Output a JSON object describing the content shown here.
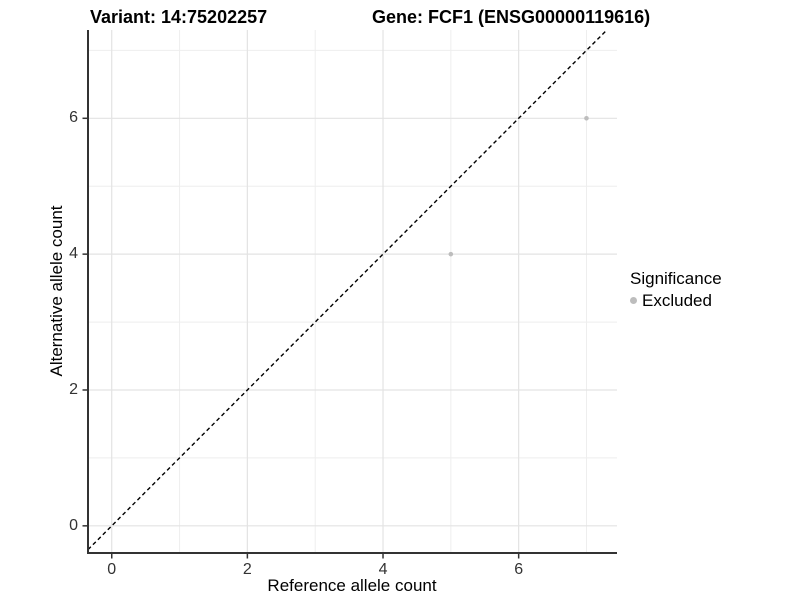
{
  "header": {
    "variant_title": "Variant: 14:75202257",
    "gene_title": "Gene: FCF1 (ENSG00000119616)"
  },
  "chart_data": {
    "type": "scatter",
    "title_left": "Variant: 14:75202257",
    "title_right": "Gene: FCF1 (ENSG00000119616)",
    "xlabel": "Reference allele count",
    "ylabel": "Alternative allele count",
    "xlim": [
      -0.35,
      7.45
    ],
    "ylim": [
      -0.4,
      7.3
    ],
    "x_ticks": [
      0,
      2,
      4,
      6
    ],
    "y_ticks": [
      0,
      2,
      4,
      6
    ],
    "x_minor_ticks": [
      1,
      3,
      5,
      7
    ],
    "y_minor_ticks": [
      1,
      3,
      5,
      7
    ],
    "grid": true,
    "points": [
      {
        "x": 5,
        "y": 4,
        "significance": "Excluded"
      },
      {
        "x": 7,
        "y": 6,
        "significance": "Excluded"
      }
    ],
    "identity_line": {
      "style": "dashed",
      "color": "#000000",
      "slope": 1,
      "intercept": 0
    },
    "legend": {
      "title": "Significance",
      "position": "right",
      "items": [
        {
          "label": "Excluded",
          "color": "#bdbdbd"
        }
      ]
    }
  },
  "colors": {
    "background": "#ffffff",
    "axis_line": "#333333",
    "tick_mark": "#333333",
    "grid_major": "#e3e3e3",
    "grid_minor": "#eeeeee",
    "point": "#bdbdbd",
    "identity_line": "#000000"
  }
}
